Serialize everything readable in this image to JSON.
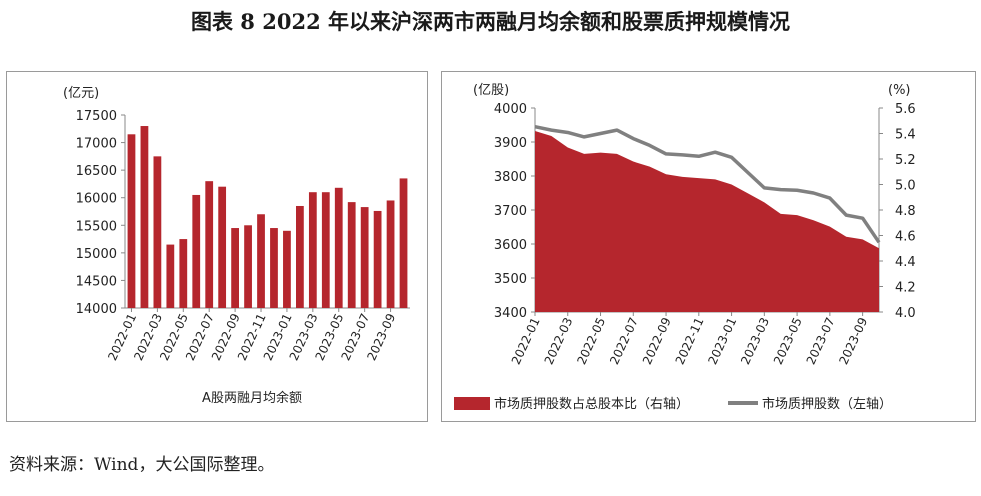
{
  "title": "图表 8  2022 年以来沪深两市两融月均余额和股票质押规模情况",
  "source": "资料来源：Wind，大公国际整理。",
  "chart_data": [
    {
      "type": "bar",
      "ylabel": "(亿元)",
      "caption": "A股两融月均余额",
      "ylim": [
        14000,
        17500
      ],
      "yticks": [
        14000,
        14500,
        15000,
        15500,
        16000,
        16500,
        17000,
        17500
      ],
      "x_tick_labels": [
        "2022-01",
        "2022-03",
        "2022-05",
        "2022-07",
        "2022-09",
        "2022-11",
        "2023-01",
        "2023-03",
        "2023-05",
        "2023-07",
        "2023-09"
      ],
      "categories": [
        "2022-01",
        "2022-02",
        "2022-03",
        "2022-04",
        "2022-05",
        "2022-06",
        "2022-07",
        "2022-08",
        "2022-09",
        "2022-10",
        "2022-11",
        "2022-12",
        "2023-01",
        "2023-02",
        "2023-03",
        "2023-04",
        "2023-05",
        "2023-06",
        "2023-07",
        "2023-08",
        "2023-09",
        "2023-10"
      ],
      "values": [
        17150,
        17300,
        16750,
        15150,
        15250,
        16050,
        16300,
        16200,
        15450,
        15500,
        15700,
        15450,
        15400,
        15850,
        16100,
        16100,
        16180,
        15920,
        15830,
        15760,
        15950,
        16350
      ],
      "colors": {
        "bar": "#b5262d"
      },
      "grid": false
    },
    {
      "type": "area",
      "ylabel_left": "(亿股)",
      "ylabel_right": "(%)",
      "ylim_left": [
        3400,
        4000
      ],
      "ylim_right": [
        4.0,
        5.6
      ],
      "yticks_left": [
        3400,
        3500,
        3600,
        3700,
        3800,
        3900,
        4000
      ],
      "yticks_right": [
        "4.0",
        "4.2",
        "4.4",
        "4.6",
        "4.8",
        "5.0",
        "5.2",
        "5.4",
        "5.6"
      ],
      "x_tick_labels": [
        "2022-01",
        "2022-03",
        "2022-05",
        "2022-07",
        "2022-09",
        "2022-11",
        "2023-01",
        "2023-03",
        "2023-05",
        "2023-07",
        "2023-09"
      ],
      "categories": [
        "2022-01",
        "2022-02",
        "2022-03",
        "2022-04",
        "2022-05",
        "2022-06",
        "2022-07",
        "2022-08",
        "2022-09",
        "2022-10",
        "2022-11",
        "2022-12",
        "2023-01",
        "2023-02",
        "2023-03",
        "2023-04",
        "2023-05",
        "2023-06",
        "2023-07",
        "2023-08",
        "2023-09",
        "2023-10"
      ],
      "series": [
        {
          "name": "市场质押股数占总股本比（右轴）",
          "kind": "area",
          "axis": "right",
          "color": "#b5262d",
          "values": [
            5.42,
            5.38,
            5.29,
            5.24,
            5.25,
            5.24,
            5.18,
            5.14,
            5.08,
            5.06,
            5.05,
            5.04,
            5.0,
            4.93,
            4.86,
            4.77,
            4.76,
            4.72,
            4.67,
            4.59,
            4.57,
            4.5
          ]
        },
        {
          "name": "市场质押股数（左轴）",
          "kind": "line",
          "axis": "left",
          "color": "#808080",
          "values": [
            3945,
            3935,
            3928,
            3915,
            3925,
            3935,
            3910,
            3890,
            3865,
            3862,
            3858,
            3870,
            3855,
            3810,
            3765,
            3760,
            3758,
            3750,
            3735,
            3685,
            3676,
            3605
          ]
        }
      ],
      "legend_position": "bottom",
      "grid": false
    }
  ]
}
